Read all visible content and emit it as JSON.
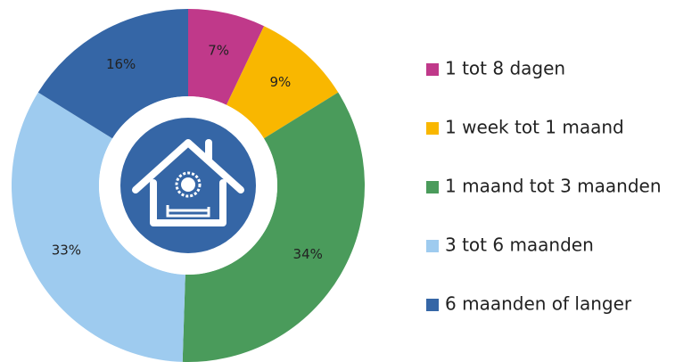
{
  "chart_data": {
    "type": "donut",
    "categories": [
      "1 tot 8 dagen",
      "1 week tot 1 maand",
      "1 maand tot 3 maanden",
      "3 tot 6 maanden",
      "6 maanden of langer"
    ],
    "values": [
      7,
      9,
      34,
      33,
      16
    ],
    "value_labels": [
      "7%",
      "9%",
      "34%",
      "33%",
      "16%"
    ],
    "colors": [
      "#c0398a",
      "#f9b700",
      "#4a9b5b",
      "#9ecbef",
      "#3566a6"
    ],
    "legend": "right"
  }
}
